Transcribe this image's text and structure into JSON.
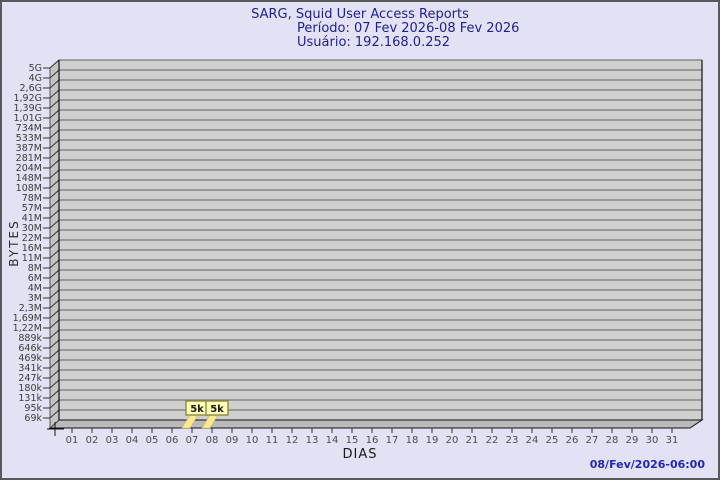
{
  "header": {
    "title": "SARG, Squid User Access Reports",
    "period_line": "Período: 07 Fev 2026-08 Fev 2026",
    "user_line": "Usuário: 192.168.0.252"
  },
  "footer": {
    "generated": "08/Fev/2026-06:00"
  },
  "chart_data": {
    "type": "bar",
    "title": "SARG, Squid User Access Reports",
    "subtitle_period": "Período: 07 Fev 2026-08 Fev 2026",
    "subtitle_user": "Usuário: 192.168.0.252",
    "xlabel": "DIAS",
    "ylabel": "BYTES",
    "y_scale": "log",
    "grid": true,
    "legend": "none",
    "x_tick_labels": [
      "01",
      "02",
      "03",
      "04",
      "05",
      "06",
      "07",
      "08",
      "09",
      "10",
      "11",
      "12",
      "13",
      "14",
      "15",
      "16",
      "17",
      "18",
      "19",
      "20",
      "21",
      "22",
      "23",
      "24",
      "25",
      "26",
      "27",
      "28",
      "29",
      "30",
      "31"
    ],
    "y_tick_labels": [
      "5G",
      "4G",
      "2,6G",
      "1,92G",
      "1,39G",
      "1,01G",
      "734M",
      "533M",
      "387M",
      "281M",
      "204M",
      "148M",
      "108M",
      "78M",
      "57M",
      "41M",
      "30M",
      "22M",
      "16M",
      "11M",
      "8M",
      "6M",
      "4M",
      "3M",
      "2,3M",
      "1,69M",
      "1,22M",
      "889k",
      "646k",
      "469k",
      "341k",
      "247k",
      "180k",
      "131k",
      "95k",
      "69k"
    ],
    "values_bytes": [
      0,
      0,
      0,
      0,
      0,
      0,
      5000,
      5000,
      0,
      0,
      0,
      0,
      0,
      0,
      0,
      0,
      0,
      0,
      0,
      0,
      0,
      0,
      0,
      0,
      0,
      0,
      0,
      0,
      0,
      0,
      0
    ],
    "bars": [
      {
        "day": "07",
        "value_label": "5k",
        "value_bytes": 5000
      },
      {
        "day": "08",
        "value_label": "5k",
        "value_bytes": 5000
      }
    ]
  },
  "colors": {
    "background": "#e2e2f4",
    "frame_border": "#58585c",
    "title_text": "#1f1f8f",
    "timestamp_text": "#2424b8",
    "plot_face": "#d0d0d0",
    "plot_wall": "#c4c4c6",
    "plot_floor": "#bababc",
    "gridline": "#5f5f5f",
    "axis_line": "#111111",
    "tick_line": "#333333",
    "tick_text": "#3c3c3c",
    "day_text": "#4c4c4c",
    "bar_fill": "#fbe98f",
    "bar_edge": "#c9b967",
    "bar_label_fill": "#ffffb5",
    "bar_label_border": "#8f8f4a",
    "bar_label_text": "#1a1a1a"
  }
}
